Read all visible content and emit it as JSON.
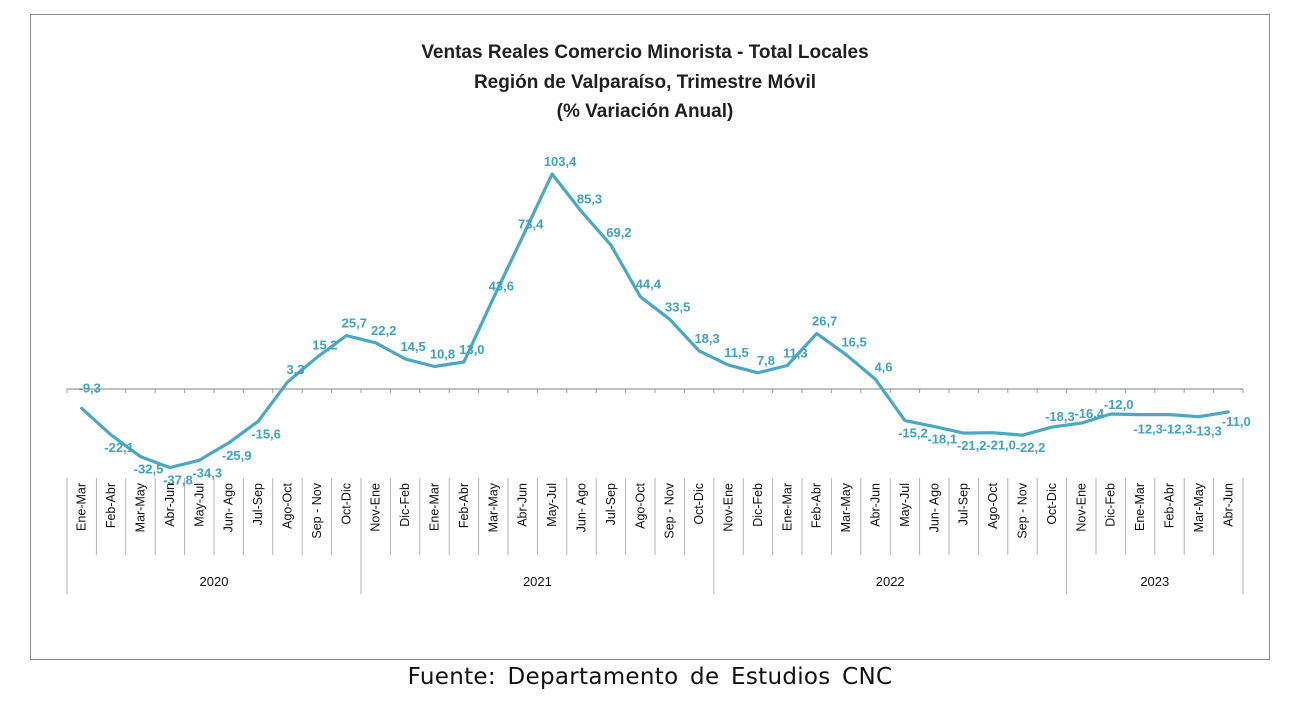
{
  "chart_data": {
    "type": "line",
    "title_lines": [
      "Ventas Reales Comercio Minorista - Total Locales",
      "Región de Valparaíso, Trimestre Móvil",
      "(% Variación Anual)"
    ],
    "categories": [
      "Ene-Mar",
      "Feb-Abr",
      "Mar-May",
      "Abr-Jun",
      "May-Jul",
      "Jun- Ago",
      "Jul-Sep",
      "Ago-Oct",
      "Sep - Nov",
      "Oct-Dic",
      "Nov-Ene",
      "Dic-Feb",
      "Ene-Mar",
      "Feb-Abr",
      "Mar-May",
      "Abr-Jun",
      "May-Jul",
      "Jun- Ago",
      "Jul-Sep",
      "Ago-Oct",
      "Sep - Nov",
      "Oct-Dic",
      "Nov-Ene",
      "Dic-Feb",
      "Ene-Mar",
      "Feb-Abr",
      "Mar-May",
      "Abr-Jun",
      "May-Jul",
      "Jun- Ago",
      "Jul-Sep",
      "Ago-Oct",
      "Sep - Nov",
      "Oct-Dic",
      "Nov-Ene",
      "Dic-Feb",
      "Ene-Mar",
      "Feb-Abr",
      "Mar-May",
      "Abr-Jun"
    ],
    "values": [
      -9.3,
      -22.1,
      -32.5,
      -37.8,
      -34.3,
      -25.9,
      -15.6,
      3.3,
      15.2,
      25.7,
      22.2,
      14.5,
      10.8,
      13.0,
      43.6,
      73.4,
      103.4,
      85.3,
      69.2,
      44.4,
      33.5,
      18.3,
      11.5,
      7.8,
      11.3,
      26.7,
      16.5,
      4.6,
      -15.2,
      -18.1,
      -21.2,
      -21.0,
      -22.2,
      -18.3,
      -16.4,
      -12.0,
      -12.3,
      -12.3,
      -13.3,
      -11.0
    ],
    "value_labels": [
      "-9,3",
      "-22,1",
      "-32,5",
      "-37,8",
      "-34,3",
      "-25,9",
      "-15,6",
      "3,3",
      "15,2",
      "25,7",
      "22,2",
      "14,5",
      "10,8",
      "13,0",
      "43,6",
      "73,4",
      "103,4",
      "85,3",
      "69,2",
      "44,4",
      "33,5",
      "18,3",
      "11,5",
      "7,8",
      "11,3",
      "26,7",
      "16,5",
      "4,6",
      "-15,2",
      "-18,1",
      "-21,2",
      "-21,0",
      "-22,2",
      "-18,3",
      "-16,4",
      "-12,0",
      "-12,3",
      "-12,3",
      "-13,3",
      "-11,0"
    ],
    "groups": [
      {
        "label": "2020",
        "start": 0,
        "count": 10
      },
      {
        "label": "2021",
        "start": 10,
        "count": 12
      },
      {
        "label": "2022",
        "start": 22,
        "count": 12
      },
      {
        "label": "2023",
        "start": 34,
        "count": 6
      }
    ],
    "ylim": [
      -40,
      110
    ],
    "grid": false,
    "legend": "none",
    "line_color": "#4aa8c3",
    "label_color": "#3fa3c0"
  },
  "source": "Fuente: Departamento de Estudios CNC"
}
